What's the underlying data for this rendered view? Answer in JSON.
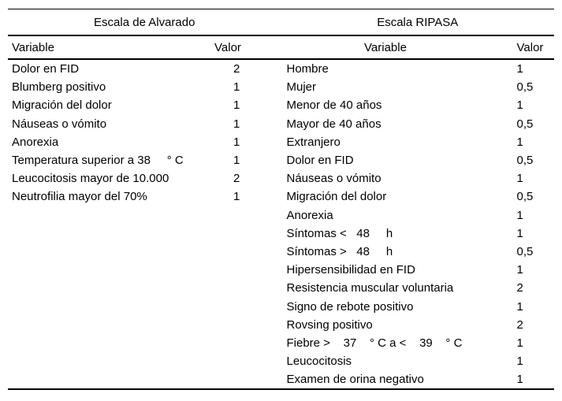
{
  "table": {
    "left": {
      "title": "Escala de Alvarado",
      "col_variable": "Variable",
      "col_valor": "Valor",
      "rows": [
        {
          "variable": "Dolor en FID",
          "valor": "2"
        },
        {
          "variable": "Blumberg positivo",
          "valor": "1"
        },
        {
          "variable": "Migración del dolor",
          "valor": "1"
        },
        {
          "variable": "Náuseas o vómito",
          "valor": "1"
        },
        {
          "variable": "Anorexia",
          "valor": "1"
        },
        {
          "variable": "Temperatura superior a 38     ° C",
          "valor": "1"
        },
        {
          "variable": "Leucocitosis mayor de 10.000",
          "valor": "2"
        },
        {
          "variable": "Neutrofilia mayor del 70%",
          "valor": "1"
        }
      ]
    },
    "right": {
      "title": "Escala RIPASA",
      "col_variable": "Variable",
      "col_valor": "Valor",
      "rows": [
        {
          "variable": "Hombre",
          "valor": "1"
        },
        {
          "variable": "Mujer",
          "valor": "0,5"
        },
        {
          "variable": "Menor de 40 años",
          "valor": "1"
        },
        {
          "variable": "Mayor de 40 años",
          "valor": "0,5"
        },
        {
          "variable": "Extranjero",
          "valor": "1"
        },
        {
          "variable": "Dolor en FID",
          "valor": "0,5"
        },
        {
          "variable": "Náuseas o vómito",
          "valor": "1"
        },
        {
          "variable": "Migración del dolor",
          "valor": "0,5"
        },
        {
          "variable": "Anorexia",
          "valor": "1"
        },
        {
          "variable": "Síntomas <   48     h",
          "valor": "1"
        },
        {
          "variable": "Síntomas >   48     h",
          "valor": "0,5"
        },
        {
          "variable": "Hipersensibilidad en FID",
          "valor": "1"
        },
        {
          "variable": "Resistencia muscular voluntaria",
          "valor": "2"
        },
        {
          "variable": "Signo de rebote positivo",
          "valor": "1"
        },
        {
          "variable": "Rovsing positivo",
          "valor": "2"
        },
        {
          "variable": "Fiebre >    37    ° C a <    39    ° C",
          "valor": "1"
        },
        {
          "variable": "Leucocitosis",
          "valor": "1"
        },
        {
          "variable": "Examen de orina negativo",
          "valor": "1"
        }
      ]
    }
  }
}
